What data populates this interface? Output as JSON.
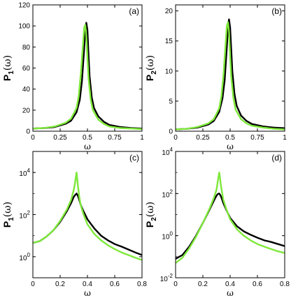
{
  "colors": {
    "series_black": "#000000",
    "series_green": "#7ee83a",
    "axes": "#000000"
  },
  "chart_data": [
    {
      "type": "line",
      "panel": "(a)",
      "xlabel": "ω",
      "ylabel_main": "P",
      "ylabel_sub": "1",
      "ylabel_arg": "(ω)",
      "xlim": [
        0,
        1
      ],
      "ylim": [
        0,
        120
      ],
      "yscale": "linear",
      "xticks": [
        0,
        0.25,
        0.5,
        0.75,
        1
      ],
      "xtick_labels": [
        "0",
        "0.25",
        "0.5",
        "0.75",
        "1"
      ],
      "yticks": [
        0,
        20,
        40,
        60,
        80,
        100,
        120
      ],
      "ytick_labels": [
        "0",
        "20",
        "40",
        "60",
        "80",
        "100",
        "120"
      ],
      "series": [
        {
          "color": "black",
          "x": [
            0,
            0.1,
            0.2,
            0.3,
            0.35,
            0.4,
            0.43,
            0.45,
            0.47,
            0.48,
            0.49,
            0.5,
            0.51,
            0.52,
            0.54,
            0.56,
            0.6,
            0.65,
            0.7,
            0.8,
            0.9,
            1.0
          ],
          "y": [
            2.5,
            3,
            4,
            7,
            10,
            18,
            30,
            48,
            78,
            96,
            103,
            96,
            72,
            52,
            32,
            22,
            14,
            9,
            6,
            4,
            3,
            2.5
          ]
        },
        {
          "color": "green",
          "x": [
            0,
            0.1,
            0.2,
            0.3,
            0.35,
            0.4,
            0.42,
            0.44,
            0.46,
            0.47,
            0.48,
            0.49,
            0.5,
            0.51,
            0.53,
            0.55,
            0.6,
            0.65,
            0.7,
            0.8,
            0.9,
            1.0
          ],
          "y": [
            2.5,
            3,
            4.5,
            8,
            12,
            22,
            33,
            55,
            84,
            98,
            101,
            90,
            70,
            50,
            30,
            20,
            11,
            7,
            4.5,
            3,
            2.5,
            2
          ]
        }
      ]
    },
    {
      "type": "line",
      "panel": "(b)",
      "xlabel": "ω",
      "ylabel_main": "P",
      "ylabel_sub": "2",
      "ylabel_arg": "(ω)",
      "xlim": [
        0,
        1
      ],
      "ylim": [
        0,
        21
      ],
      "yscale": "linear",
      "xticks": [
        0,
        0.25,
        0.5,
        0.75,
        1
      ],
      "xtick_labels": [
        "0",
        "0.25",
        "0.5",
        "0.75",
        "1"
      ],
      "yticks": [
        0,
        5,
        10,
        15,
        20
      ],
      "ytick_labels": [
        "0",
        "5",
        "10",
        "15",
        "20"
      ],
      "series": [
        {
          "color": "black",
          "x": [
            0,
            0.1,
            0.2,
            0.3,
            0.35,
            0.4,
            0.43,
            0.45,
            0.47,
            0.48,
            0.49,
            0.5,
            0.51,
            0.52,
            0.54,
            0.56,
            0.6,
            0.65,
            0.7,
            0.8,
            0.9,
            1.0
          ],
          "y": [
            0.3,
            0.4,
            0.6,
            1.1,
            1.7,
            3.2,
            5.5,
            8.5,
            14,
            17.5,
            18.6,
            17.2,
            13.5,
            10,
            6.2,
            4.2,
            2.6,
            1.7,
            1.2,
            0.8,
            0.6,
            0.5
          ]
        },
        {
          "color": "green",
          "x": [
            0,
            0.1,
            0.2,
            0.3,
            0.35,
            0.4,
            0.42,
            0.44,
            0.46,
            0.47,
            0.48,
            0.49,
            0.5,
            0.51,
            0.53,
            0.55,
            0.6,
            0.65,
            0.7,
            0.8,
            0.9,
            1.0
          ],
          "y": [
            0.3,
            0.4,
            0.7,
            1.3,
            2,
            3.8,
            5.8,
            9.5,
            15,
            17.5,
            18.1,
            16.5,
            12.5,
            9,
            5.5,
            3.6,
            2,
            1.3,
            0.9,
            0.6,
            0.4,
            0.3
          ]
        }
      ]
    },
    {
      "type": "line",
      "panel": "(c)",
      "xlabel": "ω",
      "ylabel_main": "P",
      "ylabel_sub": "1",
      "ylabel_arg": "(ω)",
      "xlim": [
        0,
        0.8
      ],
      "ylim": [
        0.1,
        100000
      ],
      "yscale": "log",
      "xticks": [
        0,
        0.2,
        0.4,
        0.6,
        0.8
      ],
      "xtick_labels": [
        "0",
        "0.2",
        "0.4",
        "0.6",
        "0.8"
      ],
      "yticks": [
        1,
        100,
        10000
      ],
      "ytick_labels": [
        {
          "base": "10",
          "exp": "0"
        },
        {
          "base": "10",
          "exp": "2"
        },
        {
          "base": "10",
          "exp": "4"
        }
      ],
      "series": [
        {
          "color": "black",
          "x": [
            0,
            0.05,
            0.1,
            0.15,
            0.2,
            0.25,
            0.28,
            0.3,
            0.31,
            0.32,
            0.33,
            0.34,
            0.35,
            0.37,
            0.4,
            0.45,
            0.5,
            0.55,
            0.6,
            0.65,
            0.7,
            0.75,
            0.8
          ],
          "y": [
            4.5,
            5.5,
            9,
            18,
            45,
            150,
            350,
            700,
            850,
            1000,
            800,
            500,
            300,
            150,
            60,
            22,
            10,
            6,
            4,
            3,
            2.2,
            1.6,
            1.2
          ]
        },
        {
          "color": "green",
          "x": [
            0,
            0.05,
            0.1,
            0.15,
            0.2,
            0.25,
            0.28,
            0.3,
            0.31,
            0.32,
            0.325,
            0.33,
            0.34,
            0.35,
            0.37,
            0.4,
            0.45,
            0.5,
            0.55,
            0.6,
            0.65,
            0.7,
            0.75,
            0.8
          ],
          "y": [
            4.5,
            5.5,
            9,
            18,
            50,
            180,
            500,
            1500,
            3500,
            10000,
            5000,
            2500,
            700,
            300,
            110,
            35,
            12,
            6,
            3.5,
            2.3,
            1.6,
            1.2,
            0.9,
            0.7
          ]
        }
      ]
    },
    {
      "type": "line",
      "panel": "(d)",
      "xlabel": "ω",
      "ylabel_main": "P",
      "ylabel_sub": "2",
      "ylabel_arg": "(ω)",
      "xlim": [
        0,
        0.8
      ],
      "ylim": [
        0.01,
        10000
      ],
      "yscale": "log",
      "xticks": [
        0,
        0.2,
        0.4,
        0.6,
        0.8
      ],
      "xtick_labels": [
        "0",
        "0.2",
        "0.4",
        "0.6",
        "0.8"
      ],
      "yticks": [
        0.01,
        1,
        100,
        10000
      ],
      "ytick_labels": [
        {
          "base": "10",
          "exp": "-2"
        },
        {
          "base": "10",
          "exp": "0"
        },
        {
          "base": "10",
          "exp": "2"
        },
        {
          "base": "10",
          "exp": "4"
        }
      ],
      "series": [
        {
          "color": "black",
          "x": [
            0,
            0.05,
            0.1,
            0.15,
            0.2,
            0.25,
            0.28,
            0.3,
            0.31,
            0.32,
            0.33,
            0.34,
            0.35,
            0.37,
            0.4,
            0.45,
            0.5,
            0.55,
            0.6,
            0.65,
            0.7,
            0.75,
            0.8
          ],
          "y": [
            0.08,
            0.12,
            0.3,
            1,
            4,
            18,
            45,
            80,
            95,
            100,
            80,
            55,
            35,
            18,
            7,
            2.8,
            1.6,
            1.1,
            0.8,
            0.6,
            0.5,
            0.4,
            0.32
          ]
        },
        {
          "color": "green",
          "x": [
            0,
            0.05,
            0.1,
            0.15,
            0.2,
            0.25,
            0.28,
            0.3,
            0.31,
            0.32,
            0.325,
            0.33,
            0.34,
            0.35,
            0.37,
            0.4,
            0.45,
            0.5,
            0.55,
            0.6,
            0.65,
            0.7,
            0.75,
            0.8
          ],
          "y": [
            0.05,
            0.09,
            0.25,
            0.9,
            4,
            20,
            60,
            150,
            400,
            1000,
            600,
            300,
            120,
            50,
            20,
            6,
            2,
            1,
            0.6,
            0.4,
            0.3,
            0.23,
            0.18,
            0.15
          ]
        }
      ]
    }
  ]
}
